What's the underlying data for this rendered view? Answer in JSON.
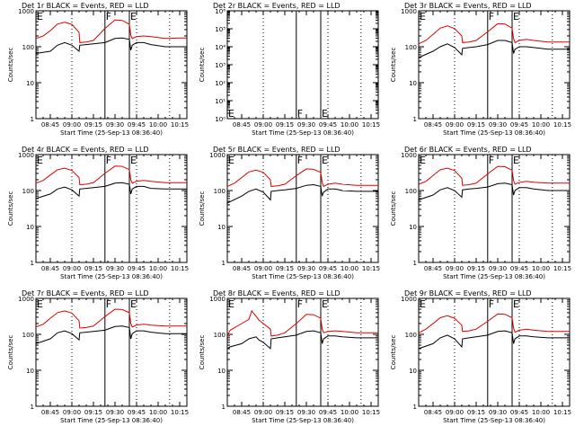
{
  "chart_data": {
    "type": "line",
    "x_tick_labels": [
      "08:45",
      "09:00",
      "09:15",
      "09:30",
      "09:45",
      "10:00",
      "10:15"
    ],
    "x_tick_minutes": [
      0,
      15,
      30,
      45,
      60,
      75,
      90
    ],
    "x_range_minutes": [
      -10,
      95
    ],
    "xlabel": "Start Time (25-Sep-13 08:36:40)",
    "ylabel": "Counts/sec",
    "vlines": [
      {
        "minute": 15,
        "style": "dotted"
      },
      {
        "minute": 38,
        "style": "solid",
        "label": "F"
      },
      {
        "minute": 55,
        "style": "solid",
        "label": "E"
      },
      {
        "minute": 60,
        "style": "dotted"
      },
      {
        "minute": 83,
        "style": "dotted"
      }
    ],
    "start_label": "E",
    "series_colors": {
      "events": "#000000",
      "lld": "#e00000"
    },
    "panels": [
      {
        "title": "Det 1r BLACK = Events, RED = LLD",
        "yrange": [
          1,
          1000
        ],
        "y_tick_labels": [
          "1",
          "10",
          "100",
          "1000"
        ],
        "y_tick_values": [
          1,
          10,
          100,
          1000
        ],
        "series": [
          {
            "key": "events",
            "x": [
              -10,
              0,
              5,
              10,
              15,
              20,
              20.5,
              25,
              30,
              38,
              45,
              50,
              55,
              56,
              57,
              60,
              65,
              70,
              80,
              90,
              95
            ],
            "y": [
              65,
              75,
              110,
              130,
              110,
              75,
              110,
              115,
              120,
              130,
              170,
              175,
              160,
              80,
              110,
              130,
              130,
              115,
              100,
              100,
              100
            ]
          },
          {
            "key": "lld",
            "x": [
              -10,
              -5,
              0,
              5,
              10,
              15,
              20,
              20.5,
              25,
              30,
              38,
              45,
              50,
              55,
              56,
              57,
              60,
              65,
              70,
              80,
              90,
              95
            ],
            "y": [
              170,
              200,
              280,
              430,
              480,
              420,
              250,
              130,
              135,
              150,
              320,
              560,
              540,
              420,
              210,
              170,
              190,
              200,
              190,
              170,
              175,
              175
            ]
          }
        ]
      },
      {
        "title": "Det 2r BLACK = Events, RED = LLD",
        "yrange": [
          1,
          1000000
        ],
        "y_tick_labels": [
          "10⁰",
          "10¹",
          "10²",
          "10³",
          "10⁴",
          "10⁵",
          "10⁶"
        ],
        "y_tick_values": [
          1,
          10,
          100,
          1000,
          10000,
          100000,
          1000000
        ],
        "series": []
      },
      {
        "title": "Det 3r BLACK = Events, RED = LLD",
        "yrange": [
          1,
          1000
        ],
        "y_tick_labels": [
          "1",
          "10",
          "100",
          "1000"
        ],
        "y_tick_values": [
          1,
          10,
          100,
          1000
        ],
        "series": [
          {
            "key": "events",
            "x": [
              -10,
              0,
              5,
              10,
              15,
              20,
              20.5,
              25,
              30,
              38,
              45,
              50,
              55,
              56,
              57,
              60,
              65,
              70,
              80,
              90,
              95
            ],
            "y": [
              50,
              75,
              100,
              120,
              95,
              60,
              90,
              95,
              100,
              115,
              150,
              150,
              130,
              65,
              85,
              100,
              100,
              95,
              85,
              85,
              85
            ]
          },
          {
            "key": "lld",
            "x": [
              -10,
              -5,
              0,
              5,
              10,
              15,
              20,
              20.5,
              25,
              30,
              38,
              45,
              50,
              55,
              56,
              57,
              60,
              65,
              70,
              80,
              90,
              95
            ],
            "y": [
              120,
              150,
              220,
              330,
              380,
              320,
              200,
              130,
              135,
              150,
              260,
              440,
              430,
              330,
              170,
              130,
              150,
              160,
              150,
              135,
              135,
              135
            ]
          }
        ]
      },
      {
        "title": "Det 4r BLACK = Events, RED = LLD",
        "yrange": [
          1,
          1000
        ],
        "y_tick_labels": [
          "1",
          "10",
          "100",
          "1000"
        ],
        "y_tick_values": [
          1,
          10,
          100,
          1000
        ],
        "series": [
          {
            "key": "events",
            "x": [
              -10,
              0,
              5,
              10,
              15,
              20,
              20.5,
              25,
              30,
              38,
              45,
              50,
              55,
              56,
              57,
              60,
              65,
              70,
              80,
              90,
              95
            ],
            "y": [
              60,
              80,
              110,
              125,
              105,
              70,
              110,
              115,
              120,
              130,
              160,
              165,
              150,
              80,
              110,
              130,
              130,
              115,
              110,
              110,
              110
            ]
          },
          {
            "key": "lld",
            "x": [
              -10,
              -5,
              0,
              5,
              10,
              15,
              20,
              20.5,
              25,
              30,
              38,
              45,
              50,
              55,
              56,
              57,
              60,
              65,
              70,
              80,
              90,
              95
            ],
            "y": [
              160,
              190,
              270,
              380,
              420,
              360,
              230,
              145,
              150,
              165,
              300,
              480,
              470,
              380,
              200,
              160,
              180,
              190,
              180,
              165,
              165,
              165
            ]
          }
        ]
      },
      {
        "title": "Det 5r BLACK = Events, RED = LLD",
        "yrange": [
          1,
          1000
        ],
        "y_tick_labels": [
          "1",
          "10",
          "100",
          "1000"
        ],
        "y_tick_values": [
          1,
          10,
          100,
          1000
        ],
        "series": [
          {
            "key": "events",
            "x": [
              -10,
              0,
              5,
              10,
              15,
              20,
              20.5,
              25,
              30,
              38,
              45,
              50,
              55,
              56,
              57,
              60,
              65,
              70,
              80,
              90,
              95
            ],
            "y": [
              45,
              70,
              95,
              110,
              90,
              55,
              95,
              100,
              105,
              115,
              140,
              145,
              130,
              70,
              90,
              110,
              110,
              100,
              95,
              95,
              95
            ]
          },
          {
            "key": "lld",
            "x": [
              -10,
              -5,
              0,
              5,
              10,
              15,
              20,
              20.5,
              25,
              30,
              38,
              45,
              50,
              55,
              56,
              57,
              60,
              65,
              70,
              80,
              90,
              95
            ],
            "y": [
              130,
              160,
              230,
              330,
              370,
              320,
              200,
              130,
              135,
              150,
              260,
              400,
              390,
              320,
              170,
              130,
              150,
              160,
              150,
              140,
              140,
              140
            ]
          }
        ]
      },
      {
        "title": "Det 6r BLACK = Events, RED = LLD",
        "yrange": [
          1,
          1000
        ],
        "y_tick_labels": [
          "1",
          "10",
          "100",
          "1000"
        ],
        "y_tick_values": [
          1,
          10,
          100,
          1000
        ],
        "series": [
          {
            "key": "events",
            "x": [
              -10,
              0,
              5,
              10,
              15,
              20,
              20.5,
              25,
              30,
              38,
              45,
              50,
              55,
              56,
              57,
              60,
              65,
              70,
              80,
              90,
              95
            ],
            "y": [
              55,
              75,
              105,
              120,
              100,
              65,
              105,
              110,
              115,
              125,
              155,
              160,
              145,
              75,
              100,
              120,
              120,
              110,
              100,
              100,
              100
            ]
          },
          {
            "key": "lld",
            "x": [
              -10,
              -5,
              0,
              5,
              10,
              15,
              20,
              20.5,
              25,
              30,
              38,
              45,
              50,
              55,
              56,
              57,
              60,
              65,
              70,
              80,
              90,
              95
            ],
            "y": [
              150,
              180,
              260,
              380,
              420,
              360,
              220,
              140,
              145,
              160,
              290,
              470,
              460,
              370,
              190,
              150,
              170,
              180,
              170,
              160,
              160,
              160
            ]
          }
        ]
      },
      {
        "title": "Det 7r BLACK = Events, RED = LLD",
        "yrange": [
          1,
          1000
        ],
        "y_tick_labels": [
          "1",
          "10",
          "100",
          "1000"
        ],
        "y_tick_values": [
          1,
          10,
          100,
          1000
        ],
        "series": [
          {
            "key": "events",
            "x": [
              -10,
              0,
              5,
              10,
              15,
              20,
              20.5,
              25,
              30,
              38,
              45,
              50,
              55,
              56,
              57,
              60,
              65,
              70,
              80,
              90,
              95
            ],
            "y": [
              55,
              75,
              110,
              125,
              105,
              70,
              110,
              115,
              120,
              130,
              165,
              170,
              155,
              75,
              105,
              125,
              125,
              115,
              105,
              105,
              105
            ]
          },
          {
            "key": "lld",
            "x": [
              -10,
              -5,
              0,
              5,
              10,
              15,
              20,
              20.5,
              25,
              30,
              38,
              45,
              50,
              55,
              56,
              57,
              60,
              65,
              70,
              80,
              90,
              95
            ],
            "y": [
              160,
              190,
              280,
              400,
              450,
              390,
              240,
              150,
              155,
              170,
              310,
              500,
              490,
              400,
              200,
              160,
              180,
              190,
              180,
              170,
              170,
              170
            ]
          }
        ]
      },
      {
        "title": "Det 8r BLACK = Events, RED = LLD",
        "yrange": [
          1,
          1000
        ],
        "y_tick_labels": [
          "1",
          "10",
          "100",
          "1000"
        ],
        "y_tick_values": [
          1,
          10,
          100,
          1000
        ],
        "series": [
          {
            "key": "events",
            "x": [
              -10,
              -8,
              0,
              5,
              10,
              12,
              15,
              20,
              20.5,
              25,
              30,
              38,
              45,
              50,
              55,
              56,
              57,
              60,
              65,
              70,
              80,
              90,
              95
            ],
            "y": [
              40,
              45,
              55,
              75,
              85,
              70,
              60,
              40,
              75,
              80,
              85,
              95,
              120,
              125,
              110,
              55,
              75,
              90,
              90,
              85,
              80,
              80,
              80
            ]
          },
          {
            "key": "lld",
            "x": [
              -10,
              -8,
              0,
              5,
              7,
              8,
              12,
              15,
              20,
              20.5,
              25,
              30,
              38,
              45,
              50,
              55,
              56,
              57,
              60,
              65,
              70,
              80,
              90,
              95
            ],
            "y": [
              90,
              130,
              200,
              260,
              450,
              400,
              250,
              200,
              140,
              90,
              95,
              110,
              200,
              360,
              350,
              280,
              140,
              110,
              120,
              125,
              120,
              110,
              110,
              110
            ]
          }
        ]
      },
      {
        "title": "Det 9r BLACK = Events, RED = LLD",
        "yrange": [
          1,
          1000
        ],
        "y_tick_labels": [
          "1",
          "10",
          "100",
          "1000"
        ],
        "y_tick_values": [
          1,
          10,
          100,
          1000
        ],
        "series": [
          {
            "key": "events",
            "x": [
              -10,
              0,
              5,
              10,
              15,
              20,
              20.5,
              25,
              30,
              38,
              45,
              50,
              55,
              56,
              57,
              60,
              65,
              70,
              80,
              90,
              95
            ],
            "y": [
              40,
              55,
              80,
              95,
              75,
              45,
              75,
              80,
              85,
              95,
              120,
              125,
              110,
              55,
              75,
              90,
              90,
              85,
              80,
              80,
              80
            ]
          },
          {
            "key": "lld",
            "x": [
              -10,
              -5,
              0,
              5,
              10,
              15,
              20,
              20.5,
              25,
              30,
              38,
              45,
              50,
              55,
              56,
              57,
              60,
              65,
              70,
              80,
              90,
              95
            ],
            "y": [
              110,
              140,
              200,
              290,
              330,
              280,
              180,
              120,
              125,
              140,
              230,
              370,
              360,
              290,
              150,
              115,
              130,
              140,
              130,
              120,
              120,
              120
            ]
          }
        ]
      }
    ]
  }
}
